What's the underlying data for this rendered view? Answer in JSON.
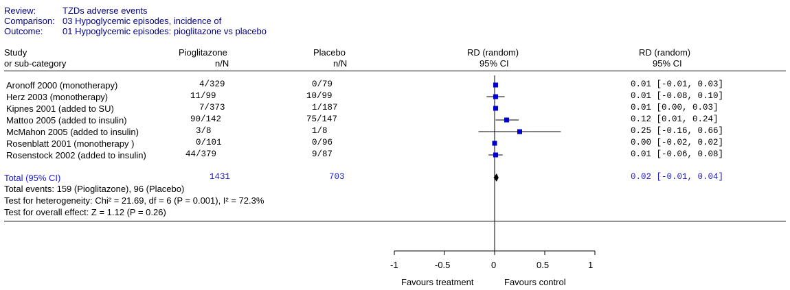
{
  "header": {
    "review_label": "Review:",
    "review_value": "TZDs adverse events",
    "comparison_label": "Comparison:",
    "comparison_value": "03 Hypoglycemic episodes, incidence of",
    "outcome_label": "Outcome:",
    "outcome_value": "01 Hypoglycemic episodes: pioglitazone vs placebo"
  },
  "columns": {
    "study_line1": "Study",
    "study_line2": "or sub-category",
    "treat_line1": "Pioglitazone",
    "treat_line2": "n/N",
    "control_line1": "Placebo",
    "control_line2": "n/N",
    "plot_line1": "RD (random)",
    "plot_line2": "95% CI",
    "ci_line1": "RD (random)",
    "ci_line2": "95% CI"
  },
  "studies": [
    {
      "name": "Aronoff 2000 (monotherapy)",
      "treatment": "4/329",
      "control": "0/79",
      "ci_text": "0.01 [-0.01, 0.03]"
    },
    {
      "name": "Herz 2003 (monotherapy)",
      "treatment": "11/99",
      "control": "10/99",
      "ci_text": "0.01 [-0.08, 0.10]"
    },
    {
      "name": "Kipnes 2001 (added to SU)",
      "treatment": "7/373",
      "control": "1/187",
      "ci_text": "0.01 [0.00, 0.03]"
    },
    {
      "name": "Mattoo 2005  (added to insulin)",
      "treatment": "90/142",
      "control": "75/147",
      "ci_text": "0.12 [0.01, 0.24]"
    },
    {
      "name": "McMahon 2005 (added to insulin)",
      "treatment": "3/8",
      "control": "1/8",
      "ci_text": "0.25 [-0.16, 0.66]"
    },
    {
      "name": "Rosenblatt 2001 (monotherapy )",
      "treatment": "0/101",
      "control": "0/96",
      "ci_text": "0.00 [-0.02, 0.02]"
    },
    {
      "name": "Rosenstock 2002 (added to insulin)",
      "treatment": "44/379",
      "control": "9/87",
      "ci_text": "0.01 [-0.06, 0.08]"
    }
  ],
  "total": {
    "label": "Total (95% CI)",
    "treatment": "1431",
    "control": "703",
    "ci_text": "0.02 [-0.01, 0.04]"
  },
  "footer": {
    "events": "Total events: 159 (Pioglitazone), 96 (Placebo)",
    "heterogeneity": "Test for heterogeneity: Chi² = 21.69, df = 6 (P = 0.001), I² = 72.3%",
    "overall": "Test for overall effect: Z = 1.12 (P = 0.26)"
  },
  "axis": {
    "ticks": [
      "-1",
      "-0.5",
      "0",
      "0.5",
      "1"
    ],
    "left_label": "Favours treatment",
    "right_label": "Favours control"
  },
  "colors": {
    "header_text": "#000080",
    "total_text": "#1a1ad6",
    "marker": "#0000cc"
  },
  "chart_data": {
    "type": "forest",
    "xlim": [
      -1,
      1
    ],
    "xticks": [
      -1,
      -0.5,
      0,
      0.5,
      1
    ],
    "studies": [
      {
        "name": "Aronoff 2000 (monotherapy)",
        "rd": 0.01,
        "lower": -0.01,
        "upper": 0.03
      },
      {
        "name": "Herz 2003 (monotherapy)",
        "rd": 0.01,
        "lower": -0.08,
        "upper": 0.1
      },
      {
        "name": "Kipnes 2001 (added to SU)",
        "rd": 0.01,
        "lower": 0.0,
        "upper": 0.03
      },
      {
        "name": "Mattoo 2005  (added to insulin)",
        "rd": 0.12,
        "lower": 0.01,
        "upper": 0.24
      },
      {
        "name": "McMahon 2005 (added to insulin)",
        "rd": 0.25,
        "lower": -0.16,
        "upper": 0.66
      },
      {
        "name": "Rosenblatt 2001 (monotherapy )",
        "rd": 0.0,
        "lower": -0.02,
        "upper": 0.02
      },
      {
        "name": "Rosenstock 2002 (added to insulin)",
        "rd": 0.01,
        "lower": -0.06,
        "upper": 0.08
      }
    ],
    "pooled": {
      "rd": 0.02,
      "lower": -0.01,
      "upper": 0.04
    }
  }
}
